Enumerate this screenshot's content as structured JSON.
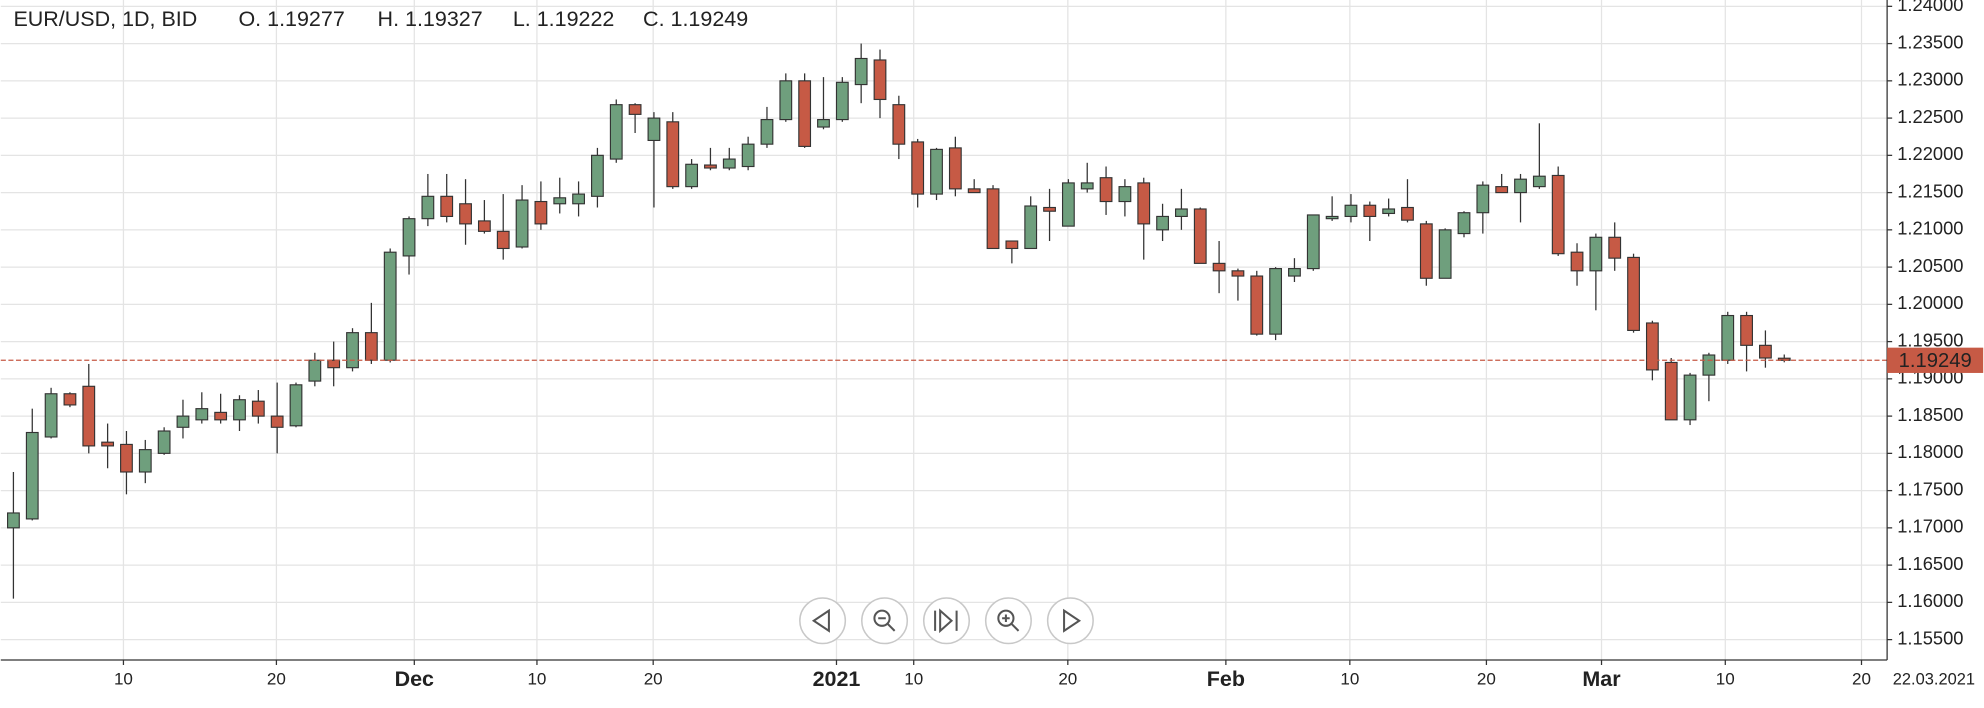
{
  "chart_data": {
    "type": "candlestick",
    "header": {
      "symbol": "EUR/USD, 1D, BID",
      "open": "O. 1.19277",
      "high": "H. 1.19327",
      "low": "L. 1.19222",
      "close": "C. 1.19249"
    },
    "date_label": "22.03.2021",
    "current_price": {
      "value": 1.19249,
      "label": "1.19249"
    },
    "up_color": "#6f9f7d",
    "down_color": "#c65a45",
    "line_color": "#c65a45",
    "grid": true,
    "open": [
      1.17,
      1.1712,
      1.1822,
      1.188,
      1.189,
      1.1815,
      1.1812,
      1.1775,
      1.18,
      1.1835,
      1.1845,
      1.1855,
      1.1845,
      1.187,
      1.185,
      1.1837,
      1.1897,
      1.1925,
      1.1915,
      1.1962,
      1.1925,
      1.2065,
      1.2115,
      1.2145,
      1.2135,
      1.2112,
      1.2098,
      1.2077,
      1.2138,
      1.2135,
      1.2135,
      1.2145,
      1.2195,
      1.2268,
      1.222,
      1.2245,
      1.2158,
      1.2187,
      1.2183,
      1.2185,
      1.2215,
      1.2248,
      1.23,
      1.2238,
      1.2248,
      1.2295,
      1.2328,
      1.2268,
      1.2218,
      1.2148,
      1.221,
      1.2155,
      1.2155,
      1.2085,
      1.2075,
      1.213,
      1.2105,
      1.2155,
      1.217,
      1.2138,
      1.2163,
      1.21,
      1.2118,
      1.2128,
      1.2055,
      1.2045,
      1.2038,
      1.196,
      1.2038,
      1.2048,
      1.2115,
      1.2118,
      1.2133,
      1.2122,
      1.213,
      1.2108,
      1.2035,
      1.2095,
      1.2123,
      1.2158,
      1.215,
      1.2158,
      1.2173,
      1.207,
      1.2045,
      1.209,
      1.2063,
      1.1975,
      1.1922,
      1.1845,
      1.1905,
      1.1925,
      1.1985,
      1.1945,
      1.19277
    ],
    "high": [
      1.1775,
      1.186,
      1.1888,
      1.1882,
      1.192,
      1.184,
      1.183,
      1.1818,
      1.1835,
      1.1872,
      1.1882,
      1.188,
      1.1878,
      1.1885,
      1.1895,
      1.1895,
      1.1935,
      1.195,
      1.1968,
      1.2002,
      1.2075,
      1.2118,
      1.2175,
      1.2175,
      1.2168,
      1.214,
      1.2148,
      1.216,
      1.2165,
      1.217,
      1.2165,
      1.221,
      1.2275,
      1.227,
      1.2258,
      1.2258,
      1.2195,
      1.221,
      1.221,
      1.2225,
      1.2265,
      1.231,
      1.231,
      1.2305,
      1.2305,
      1.235,
      1.2342,
      1.228,
      1.2222,
      1.221,
      1.2225,
      1.2168,
      1.216,
      1.2085,
      1.2145,
      1.2155,
      1.2168,
      1.219,
      1.2185,
      1.2168,
      1.217,
      1.2135,
      1.2155,
      1.213,
      1.2085,
      1.2048,
      1.2045,
      1.205,
      1.2062,
      1.212,
      1.2145,
      1.2148,
      1.2138,
      1.2142,
      1.2168,
      1.2112,
      1.2102,
      1.2125,
      1.2165,
      1.2175,
      1.2175,
      1.2243,
      1.2185,
      1.2082,
      1.2095,
      1.211,
      1.2068,
      1.1978,
      1.1928,
      1.1908,
      1.1935,
      1.199,
      1.199,
      1.1965,
      1.19327
    ],
    "low": [
      1.1605,
      1.171,
      1.182,
      1.1862,
      1.18,
      1.178,
      1.1745,
      1.176,
      1.1798,
      1.182,
      1.184,
      1.184,
      1.183,
      1.184,
      1.18,
      1.1835,
      1.189,
      1.189,
      1.191,
      1.192,
      1.1922,
      1.204,
      1.2105,
      1.211,
      1.208,
      1.2095,
      1.206,
      1.2075,
      1.21,
      1.2122,
      1.2118,
      1.213,
      1.219,
      1.223,
      1.213,
      1.2155,
      1.2155,
      1.218,
      1.218,
      1.218,
      1.221,
      1.2245,
      1.221,
      1.2235,
      1.2245,
      1.227,
      1.225,
      1.2195,
      1.213,
      1.214,
      1.2145,
      1.215,
      1.2075,
      1.2055,
      1.2075,
      1.2085,
      1.2105,
      1.215,
      1.212,
      1.2118,
      1.206,
      1.2085,
      1.21,
      1.2055,
      1.2015,
      1.2005,
      1.1958,
      1.1952,
      1.203,
      1.2045,
      1.2112,
      1.211,
      1.2085,
      1.2118,
      1.211,
      1.2025,
      1.2035,
      1.209,
      1.2095,
      1.215,
      1.211,
      1.2155,
      1.2065,
      1.2025,
      1.1992,
      1.2045,
      1.1962,
      1.1898,
      1.1845,
      1.1838,
      1.187,
      1.192,
      1.191,
      1.1915,
      1.19222
    ],
    "close": [
      1.172,
      1.1828,
      1.188,
      1.1865,
      1.181,
      1.181,
      1.1775,
      1.1805,
      1.183,
      1.185,
      1.186,
      1.1845,
      1.1872,
      1.185,
      1.1835,
      1.1892,
      1.1925,
      1.1915,
      1.1962,
      1.1925,
      1.207,
      1.2115,
      1.2145,
      1.2118,
      1.2108,
      1.2098,
      1.2075,
      1.214,
      1.2108,
      1.2143,
      1.2148,
      1.22,
      1.2268,
      1.2255,
      1.225,
      1.2158,
      1.2188,
      1.2183,
      1.2195,
      1.2215,
      1.2248,
      1.23,
      1.2212,
      1.2248,
      1.2298,
      1.233,
      1.2275,
      1.2215,
      1.2148,
      1.2208,
      1.2155,
      1.215,
      1.2075,
      1.2075,
      1.2132,
      1.2125,
      1.2163,
      1.2163,
      1.2138,
      1.2158,
      1.2108,
      1.2118,
      1.2128,
      1.2055,
      1.2045,
      1.2038,
      1.196,
      1.2048,
      1.2048,
      1.212,
      1.2118,
      1.2133,
      1.2118,
      1.2128,
      1.2113,
      1.2035,
      1.21,
      1.2123,
      1.216,
      1.215,
      1.2168,
      1.2172,
      1.2068,
      1.2045,
      1.209,
      1.2062,
      1.1965,
      1.1912,
      1.1845,
      1.1905,
      1.1932,
      1.1985,
      1.1945,
      1.1928,
      1.19249
    ],
    "xlim": [
      -0.67,
      99.46
    ],
    "xticks": [
      {
        "value": 5.84,
        "label": "10"
      },
      {
        "value": 13.96,
        "label": "20"
      },
      {
        "value": 21.28,
        "label": "Dec"
      },
      {
        "value": 27.79,
        "label": "10"
      },
      {
        "value": 33.96,
        "label": "20"
      },
      {
        "value": 43.69,
        "label": "2021"
      },
      {
        "value": 47.79,
        "label": "10"
      },
      {
        "value": 55.97,
        "label": "20"
      },
      {
        "value": 64.36,
        "label": "Feb"
      },
      {
        "value": 70.94,
        "label": "10"
      },
      {
        "value": 78.19,
        "label": "20"
      },
      {
        "value": 84.3,
        "label": "Mar"
      },
      {
        "value": 90.87,
        "label": "10"
      },
      {
        "value": 98.1,
        "label": "20"
      }
    ],
    "ylim": [
      1.15227,
      1.24085
    ],
    "yticks": [
      {
        "value": 1.155,
        "label": "1.15500"
      },
      {
        "value": 1.16,
        "label": "1.16000"
      },
      {
        "value": 1.165,
        "label": "1.16500"
      },
      {
        "value": 1.17,
        "label": "1.17000"
      },
      {
        "value": 1.175,
        "label": "1.17500"
      },
      {
        "value": 1.18,
        "label": "1.18000"
      },
      {
        "value": 1.185,
        "label": "1.18500"
      },
      {
        "value": 1.19,
        "label": "1.19000"
      },
      {
        "value": 1.195,
        "label": "1.19500"
      },
      {
        "value": 1.2,
        "label": "1.20000"
      },
      {
        "value": 1.205,
        "label": "1.20500"
      },
      {
        "value": 1.21,
        "label": "1.21000"
      },
      {
        "value": 1.215,
        "label": "1.21500"
      },
      {
        "value": 1.22,
        "label": "1.22000"
      },
      {
        "value": 1.225,
        "label": "1.22500"
      },
      {
        "value": 1.23,
        "label": "1.23000"
      },
      {
        "value": 1.235,
        "label": "1.23500"
      },
      {
        "value": 1.24,
        "label": "1.24000"
      }
    ]
  }
}
